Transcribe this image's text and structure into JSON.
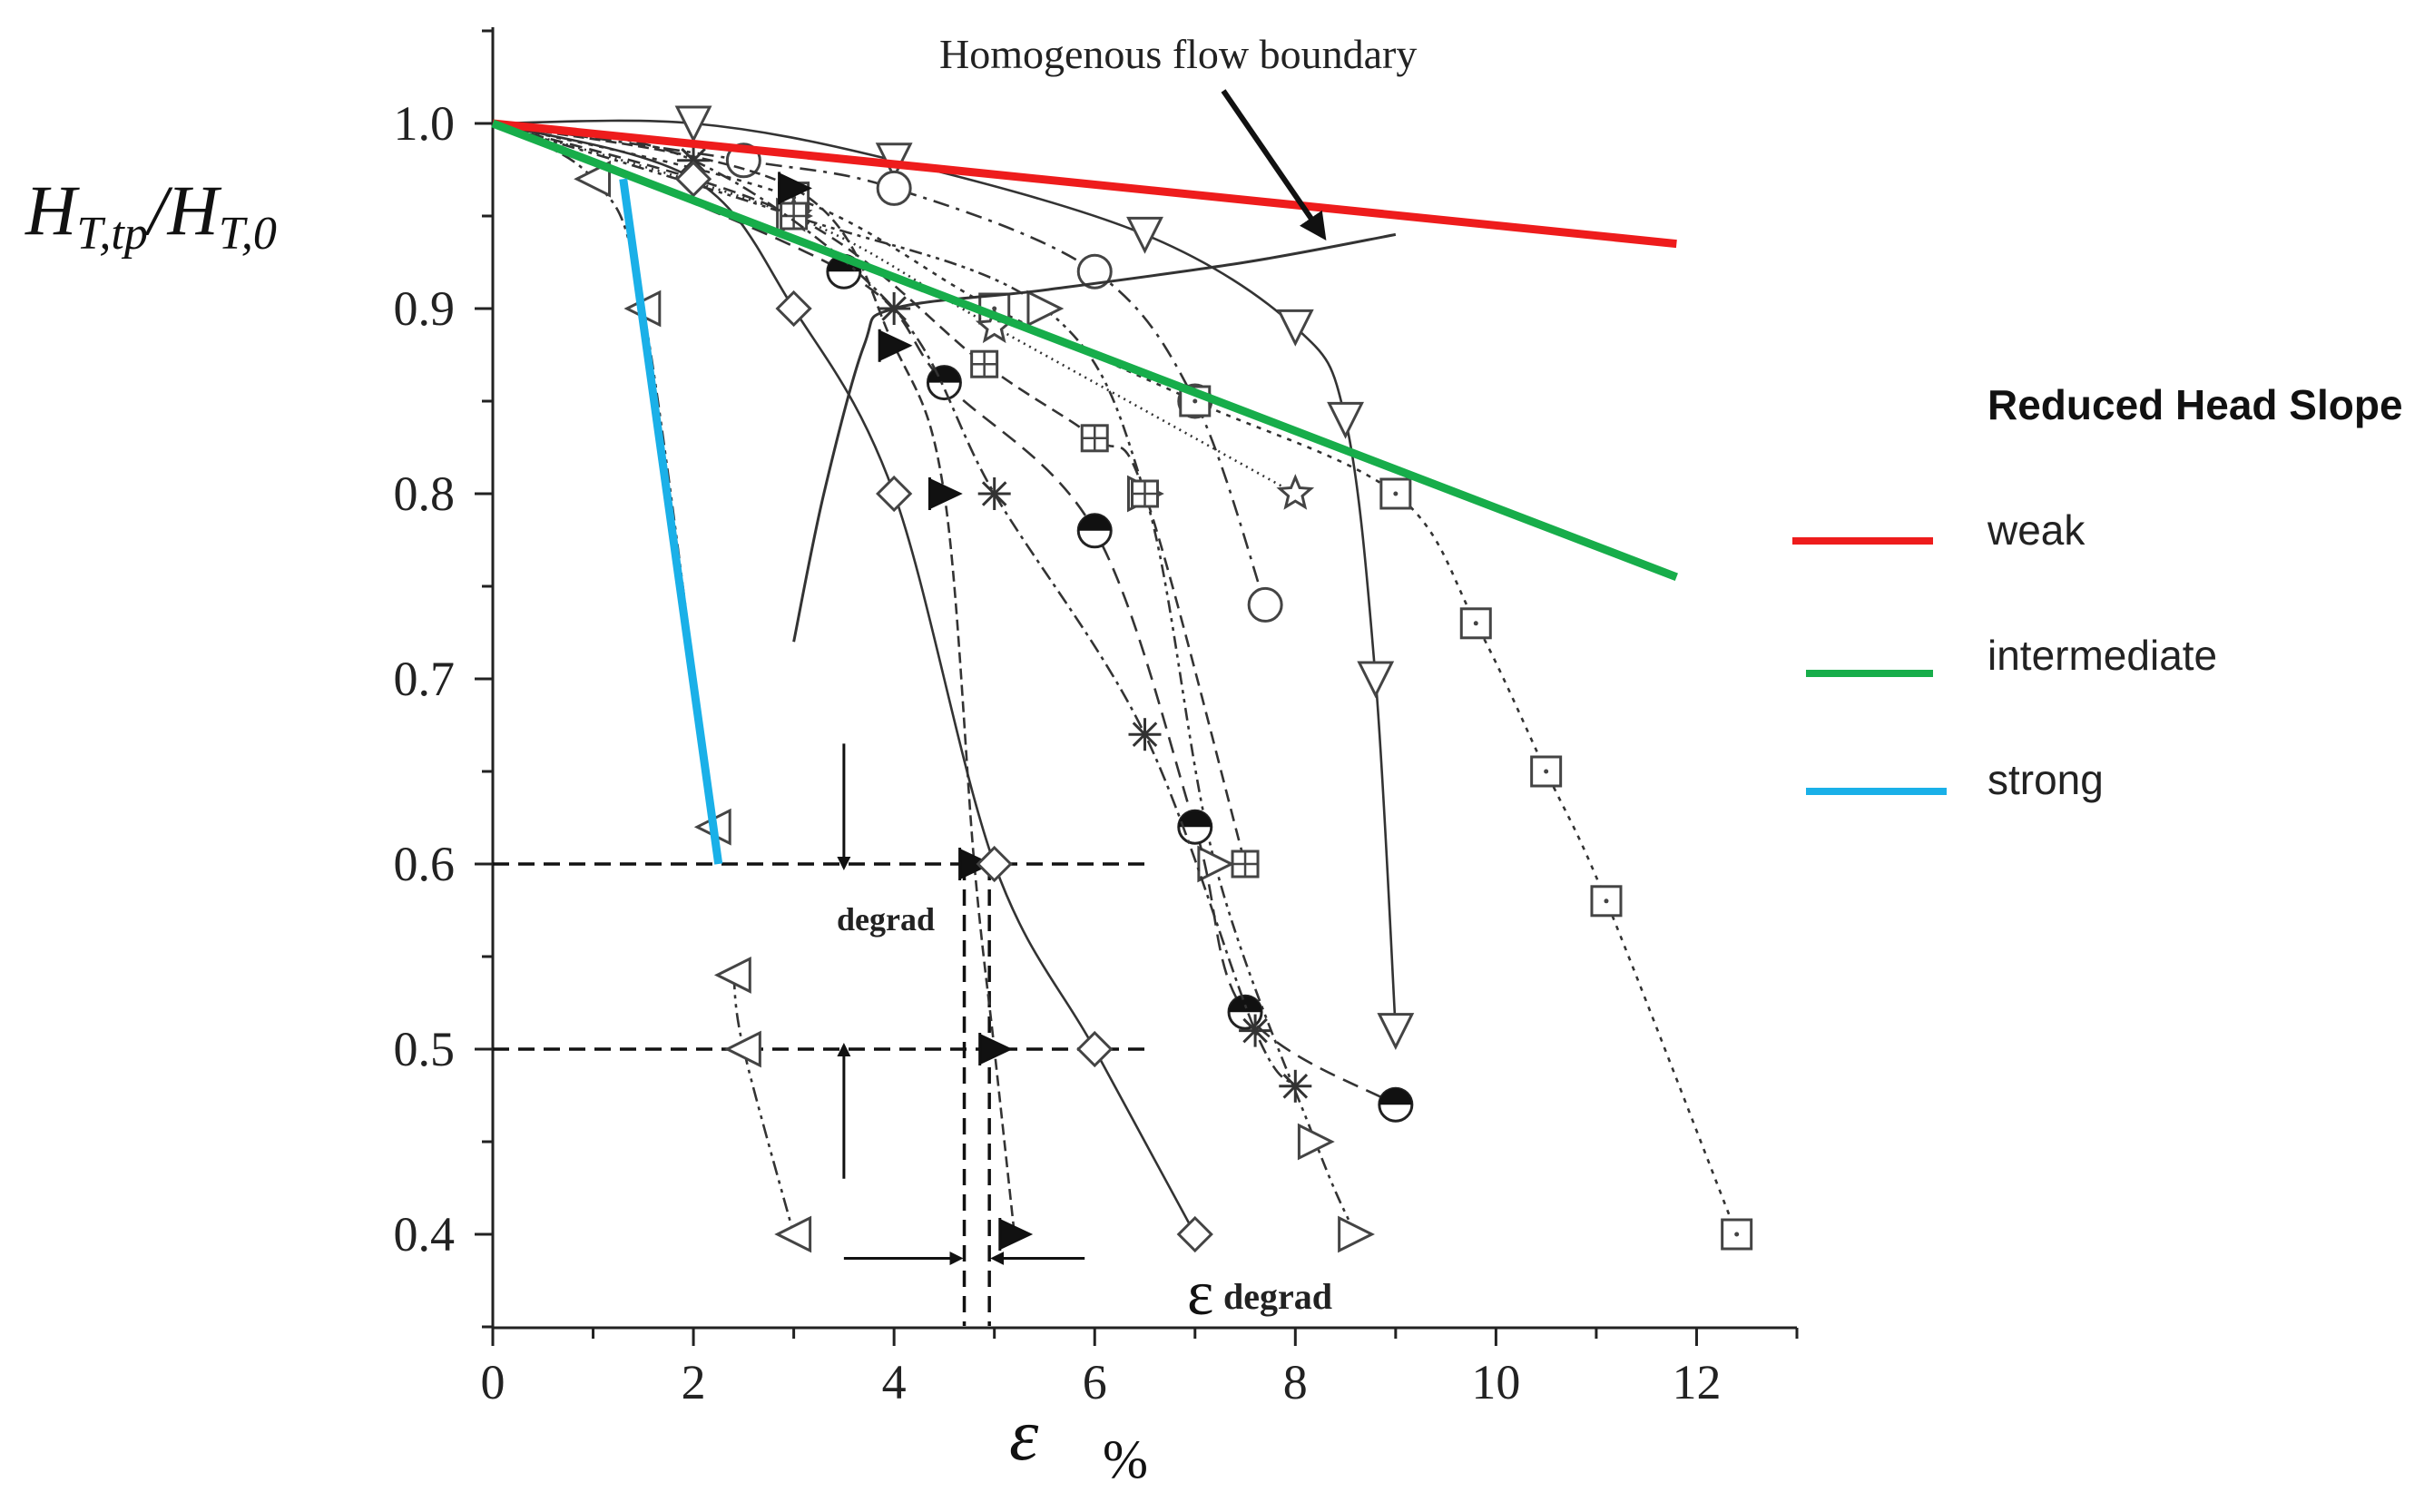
{
  "chart_data": {
    "type": "line",
    "title": "",
    "xlabel_symbol": "ε",
    "xlabel_unit": "%",
    "ylabel": "H_{T,tp}/H_{T,0}",
    "ylabel_parts": {
      "main": "H",
      "sub1": "T,tp",
      "sep": "/H",
      "sub2": "T,0"
    },
    "xlim": [
      0,
      13
    ],
    "ylim": [
      0.35,
      1.05
    ],
    "xticks": [
      "0",
      "2",
      "4",
      "6",
      "8",
      "10",
      "12"
    ],
    "yticks": [
      "0.4",
      "0.5",
      "0.6",
      "0.7",
      "0.8",
      "0.9",
      "1.0"
    ],
    "annotations": {
      "homogenous": "Homogenous flow boundary",
      "degrad": "degrad",
      "eps_degrad_symbol": "ε",
      "eps_degrad_sub": "degrad"
    },
    "legend": {
      "title": "Reduced Head Slope",
      "entries": [
        {
          "label": "weak",
          "color": "#ee1c1c"
        },
        {
          "label": "intermediate",
          "color": "#17ad4a"
        },
        {
          "label": "strong",
          "color": "#1ab0e8"
        }
      ]
    },
    "slope_lines": [
      {
        "name": "weak",
        "color": "#ee1c1c",
        "points": [
          [
            0,
            1.0
          ],
          [
            11.8,
            0.935
          ]
        ]
      },
      {
        "name": "intermediate",
        "color": "#17ad4a",
        "points": [
          [
            0,
            1.0
          ],
          [
            11.8,
            0.755
          ]
        ]
      },
      {
        "name": "strong",
        "color": "#1ab0e8",
        "points": [
          [
            1.3,
            0.97
          ],
          [
            2.25,
            0.6
          ]
        ]
      }
    ],
    "series": [
      {
        "marker": "tri-down",
        "dash": "",
        "points": [
          [
            0,
            1.0
          ],
          [
            2,
            1.0
          ],
          [
            4,
            0.98
          ],
          [
            6.5,
            0.94
          ],
          [
            8,
            0.89
          ],
          [
            8.5,
            0.84
          ],
          [
            8.8,
            0.7
          ],
          [
            9.0,
            0.51
          ]
        ]
      },
      {
        "marker": "circle",
        "dash": "18 8 4 8",
        "points": [
          [
            0,
            1.0
          ],
          [
            2.5,
            0.98
          ],
          [
            4,
            0.965
          ],
          [
            6,
            0.92
          ],
          [
            7,
            0.85
          ],
          [
            7.7,
            0.74
          ]
        ]
      },
      {
        "marker": "square",
        "dash": "5 7",
        "points": [
          [
            0,
            1.0
          ],
          [
            3,
            0.96
          ],
          [
            5,
            0.9
          ],
          [
            7,
            0.85
          ],
          [
            9,
            0.8
          ],
          [
            9.8,
            0.73
          ],
          [
            10.5,
            0.65
          ],
          [
            11.1,
            0.58
          ],
          [
            12.4,
            0.4
          ]
        ]
      },
      {
        "marker": "star",
        "dash": "2 5",
        "points": [
          [
            0,
            1.0
          ],
          [
            3,
            0.95
          ],
          [
            5,
            0.89
          ],
          [
            8,
            0.8
          ]
        ]
      },
      {
        "marker": "tri-right",
        "dash": "14 6 4 6 4 6",
        "points": [
          [
            0,
            1.0
          ],
          [
            3,
            0.95
          ],
          [
            5.5,
            0.9
          ],
          [
            6.5,
            0.8
          ],
          [
            7.2,
            0.6
          ],
          [
            8.2,
            0.45
          ],
          [
            8.6,
            0.4
          ]
        ]
      },
      {
        "marker": "boxplus",
        "dash": "14 8",
        "points": [
          [
            0,
            1.0
          ],
          [
            3,
            0.95
          ],
          [
            4.9,
            0.87
          ],
          [
            6,
            0.83
          ],
          [
            6.5,
            0.8
          ],
          [
            7.5,
            0.6
          ]
        ]
      },
      {
        "marker": "half-circle",
        "dash": "18 10",
        "points": [
          [
            0,
            1.0
          ],
          [
            3.5,
            0.92
          ],
          [
            4.5,
            0.86
          ],
          [
            6,
            0.78
          ],
          [
            7,
            0.62
          ],
          [
            7.5,
            0.52
          ],
          [
            9,
            0.47
          ]
        ]
      },
      {
        "marker": "asterisk",
        "dash": "16 6 4 6",
        "points": [
          [
            0,
            1.0
          ],
          [
            2,
            0.98
          ],
          [
            4,
            0.9
          ],
          [
            5,
            0.8
          ],
          [
            6.5,
            0.67
          ],
          [
            7.6,
            0.51
          ],
          [
            8,
            0.48
          ]
        ]
      },
      {
        "marker": "flag",
        "dash": "12 6",
        "points": [
          [
            0,
            1.0
          ],
          [
            3,
            0.965
          ],
          [
            4,
            0.88
          ],
          [
            4.5,
            0.8
          ],
          [
            4.8,
            0.6
          ],
          [
            5,
            0.5
          ],
          [
            5.2,
            0.4
          ]
        ]
      },
      {
        "marker": "diamond",
        "dash": "",
        "points": [
          [
            0,
            1.0
          ],
          [
            2,
            0.97
          ],
          [
            3,
            0.9
          ],
          [
            4,
            0.8
          ],
          [
            5,
            0.6
          ],
          [
            6,
            0.5
          ],
          [
            7,
            0.4
          ]
        ]
      },
      {
        "marker": "tri-left",
        "dash": "16 6 4 6 4 6",
        "points": [
          [
            0,
            1.0
          ],
          [
            1,
            0.97
          ],
          [
            1.5,
            0.9
          ],
          [
            2.2,
            0.62
          ]
        ]
      },
      {
        "marker": "tri-left",
        "dash": "16 6 4 6 4 6",
        "points": [
          [
            2.4,
            0.54
          ],
          [
            2.5,
            0.5
          ],
          [
            3,
            0.4
          ]
        ]
      }
    ],
    "homogenous_boundary": [
      [
        3,
        0.72
      ],
      [
        3.3,
        0.8
      ],
      [
        3.7,
        0.88
      ],
      [
        4,
        0.9
      ],
      [
        5.5,
        0.91
      ],
      [
        7.5,
        0.925
      ],
      [
        9,
        0.94
      ]
    ]
  }
}
